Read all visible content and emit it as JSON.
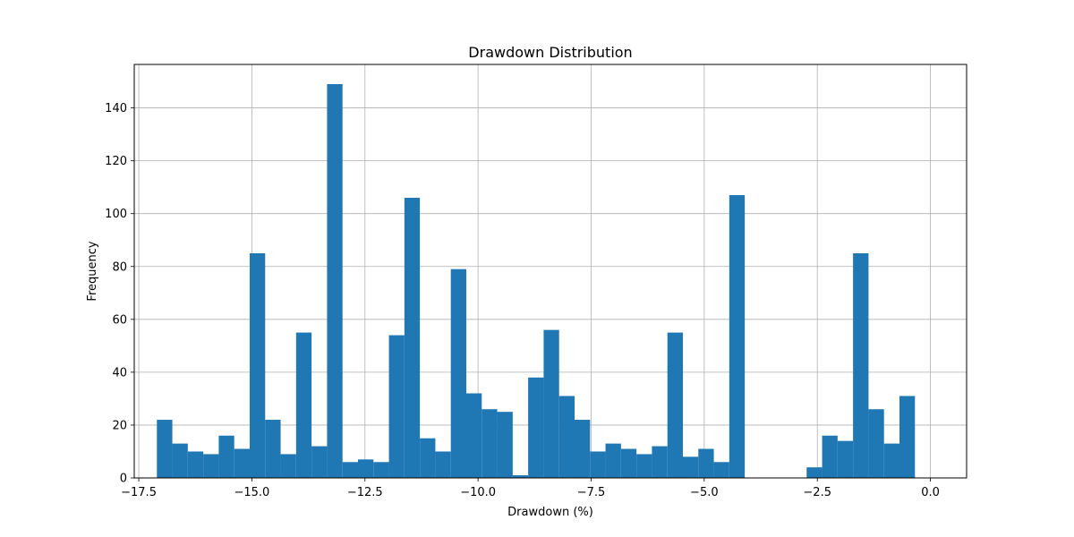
{
  "chart_data": {
    "type": "bar",
    "title": "Drawdown Distribution",
    "xlabel": "Drawdown (%)",
    "ylabel": "Frequency",
    "xlim": [
      -17.6,
      0.8
    ],
    "ylim": [
      0,
      156.45
    ],
    "xticks": [
      -17.5,
      -15.0,
      -12.5,
      -10.0,
      -7.5,
      -5.0,
      -2.5,
      0.0
    ],
    "xtick_labels": [
      "−17.5",
      "−15.0",
      "−12.5",
      "−10.0",
      "−7.5",
      "−5.0",
      "−2.5",
      "0.0"
    ],
    "yticks": [
      0,
      20,
      40,
      60,
      80,
      100,
      120,
      140
    ],
    "ytick_labels": [
      "0",
      "20",
      "40",
      "60",
      "80",
      "100",
      "120",
      "140"
    ],
    "grid": true,
    "bin_start": -17.1,
    "bin_width": 0.342,
    "counts": [
      22,
      13,
      10,
      9,
      16,
      11,
      85,
      22,
      9,
      55,
      12,
      149,
      6,
      7,
      6,
      54,
      106,
      15,
      10,
      79,
      32,
      26,
      25,
      1,
      38,
      56,
      31,
      22,
      10,
      13,
      11,
      9,
      12,
      55,
      8,
      11,
      6,
      107,
      0,
      0,
      0,
      0,
      4,
      16,
      14,
      85,
      26,
      13,
      31
    ],
    "bar_color": "#1f77b4"
  }
}
